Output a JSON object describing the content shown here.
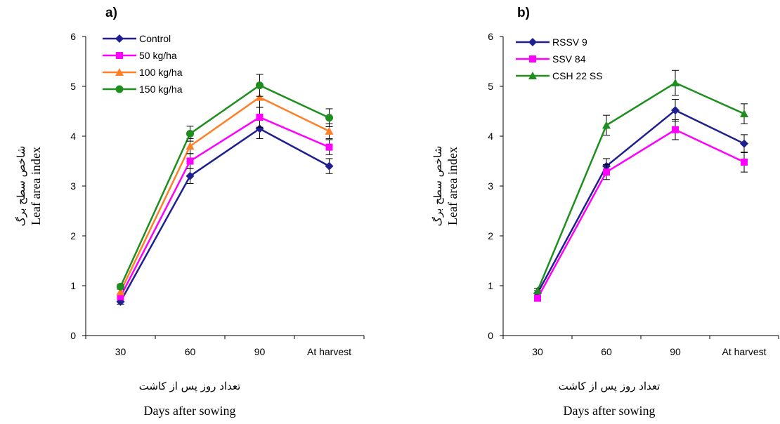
{
  "chart_data": [
    {
      "type": "line",
      "panel_label": "a)",
      "title": "",
      "categories": [
        "30",
        "60",
        "90",
        "At harvest"
      ],
      "ylim": [
        0,
        6
      ],
      "yticks": [
        0,
        1,
        2,
        3,
        4,
        5,
        6
      ],
      "ylabel_fa": "شاخص سطح برگ",
      "ylabel": "Leaf area index",
      "xlabel_fa": "تعداد روز پس از کاشت",
      "xlabel": "Days after sowing",
      "legend_position": "top-left",
      "grid": false,
      "error_bars": true,
      "series": [
        {
          "name": "Control",
          "color": "#1F1F8F",
          "marker": "diamond",
          "values": [
            0.68,
            3.2,
            4.15,
            3.4
          ],
          "errors": [
            0.05,
            0.15,
            0.2,
            0.15
          ]
        },
        {
          "name": "50 kg/ha",
          "color": "#FF00FF",
          "marker": "square",
          "values": [
            0.78,
            3.5,
            4.38,
            3.78
          ],
          "errors": [
            0.05,
            0.15,
            0.2,
            0.15
          ]
        },
        {
          "name": "100 kg/ha",
          "color": "#FF7F27",
          "marker": "triangle",
          "values": [
            0.88,
            3.8,
            4.78,
            4.1
          ],
          "errors": [
            0.05,
            0.15,
            0.2,
            0.15
          ]
        },
        {
          "name": "150 kg/ha",
          "color": "#1E8F1E",
          "marker": "circle",
          "values": [
            0.98,
            4.05,
            5.02,
            4.37
          ],
          "errors": [
            0.05,
            0.15,
            0.22,
            0.18
          ]
        }
      ]
    },
    {
      "type": "line",
      "panel_label": "b)",
      "title": "",
      "categories": [
        "30",
        "60",
        "90",
        "At harvest"
      ],
      "ylim": [
        0,
        6
      ],
      "yticks": [
        0,
        1,
        2,
        3,
        4,
        5,
        6
      ],
      "ylabel_fa": "شاخص سطح برگ",
      "ylabel": "Leaf area index",
      "xlabel_fa": "تعداد روز پس از کاشت",
      "xlabel": "Days after sowing",
      "legend_position": "top-left",
      "grid": false,
      "error_bars": true,
      "series": [
        {
          "name": "RSSV 9",
          "color": "#1F1F8F",
          "marker": "diamond",
          "values": [
            0.85,
            3.4,
            4.52,
            3.85
          ],
          "errors": [
            0.05,
            0.15,
            0.22,
            0.18
          ]
        },
        {
          "name": "SSV 84",
          "color": "#FF00FF",
          "marker": "square",
          "values": [
            0.75,
            3.28,
            4.13,
            3.48
          ],
          "errors": [
            0.05,
            0.15,
            0.2,
            0.2
          ]
        },
        {
          "name": "CSH 22 SS",
          "color": "#1E8F1E",
          "marker": "triangle",
          "values": [
            0.9,
            4.22,
            5.07,
            4.45
          ],
          "errors": [
            0.05,
            0.2,
            0.25,
            0.2
          ]
        }
      ]
    }
  ]
}
